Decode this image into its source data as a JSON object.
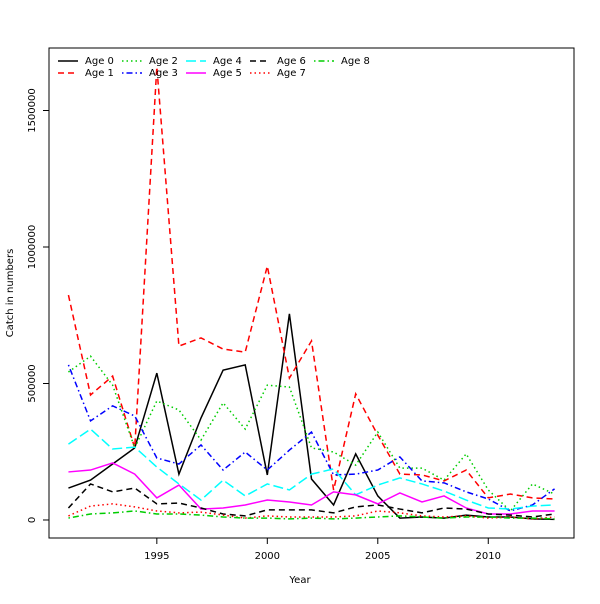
{
  "chart_data": {
    "type": "line",
    "x_label": "Year",
    "y_label": "Catch in numbers",
    "x": [
      1991,
      1992,
      1993,
      1994,
      1995,
      1996,
      1997,
      1998,
      1999,
      2000,
      2001,
      2002,
      2003,
      2004,
      2005,
      2006,
      2007,
      2008,
      2009,
      2010,
      2011,
      2012,
      2013
    ],
    "xlim": [
      1990.12,
      2013.88
    ],
    "xticks": [
      1995,
      2000,
      2005,
      2010
    ],
    "ylim": [
      -66000,
      1729000
    ],
    "yticks": [
      0,
      500000,
      1000000,
      1500000
    ],
    "legend": "top-left",
    "series": [
      {
        "name": "Age 0",
        "color": "#000000",
        "dash": "solid",
        "values": [
          117000,
          146000,
          205000,
          264000,
          538000,
          168000,
          374000,
          549000,
          568000,
          165000,
          755000,
          150000,
          55000,
          242000,
          88000,
          7000,
          11000,
          7000,
          18000,
          11000,
          11000,
          4000,
          2000
        ]
      },
      {
        "name": "Age 1",
        "color": "#ff0000",
        "dash": "dashed",
        "values": [
          824000,
          458000,
          527000,
          264000,
          1660000,
          637000,
          667000,
          626000,
          615000,
          930000,
          520000,
          656000,
          110000,
          462000,
          311000,
          168000,
          165000,
          143000,
          183000,
          81000,
          95000,
          81000,
          77000
        ]
      },
      {
        "name": "Age 2",
        "color": "#00cd00",
        "dash": "dotted",
        "values": [
          542000,
          600000,
          494000,
          264000,
          436000,
          403000,
          293000,
          429000,
          333000,
          494000,
          487000,
          264000,
          249000,
          201000,
          322000,
          190000,
          190000,
          146000,
          242000,
          110000,
          33000,
          132000,
          95000
        ]
      },
      {
        "name": "Age 3",
        "color": "#0000ff",
        "dash": "dotdash",
        "values": [
          568000,
          363000,
          418000,
          381000,
          227000,
          205000,
          275000,
          183000,
          249000,
          183000,
          256000,
          322000,
          165000,
          168000,
          183000,
          231000,
          143000,
          136000,
          103000,
          77000,
          33000,
          55000,
          114000
        ]
      },
      {
        "name": "Age 4",
        "color": "#00ffff",
        "dash": "longdash",
        "values": [
          278000,
          333000,
          260000,
          267000,
          194000,
          132000,
          73000,
          146000,
          88000,
          132000,
          110000,
          168000,
          187000,
          92000,
          128000,
          154000,
          132000,
          106000,
          73000,
          44000,
          40000,
          51000,
          55000
        ]
      },
      {
        "name": "Age 5",
        "color": "#ff00ff",
        "dash": "solid",
        "values": [
          176000,
          183000,
          209000,
          168000,
          81000,
          128000,
          40000,
          44000,
          55000,
          73000,
          66000,
          55000,
          103000,
          92000,
          59000,
          99000,
          66000,
          88000,
          44000,
          22000,
          22000,
          33000,
          33000
        ]
      },
      {
        "name": "Age 6",
        "color": "#000000",
        "dash": "dashed",
        "values": [
          44000,
          132000,
          103000,
          117000,
          59000,
          62000,
          44000,
          22000,
          15000,
          37000,
          37000,
          37000,
          26000,
          48000,
          55000,
          40000,
          26000,
          44000,
          40000,
          22000,
          18000,
          11000,
          22000
        ]
      },
      {
        "name": "Age 7",
        "color": "#ff0000",
        "dash": "dotted",
        "values": [
          15000,
          51000,
          59000,
          48000,
          33000,
          26000,
          29000,
          18000,
          7000,
          15000,
          11000,
          11000,
          11000,
          15000,
          33000,
          26000,
          15000,
          11000,
          15000,
          7000,
          11000,
          4000,
          11000
        ]
      },
      {
        "name": "Age 8",
        "color": "#00cd00",
        "dash": "dotdash",
        "values": [
          7000,
          22000,
          26000,
          33000,
          22000,
          22000,
          18000,
          11000,
          7000,
          7000,
          4000,
          7000,
          4000,
          7000,
          11000,
          15000,
          11000,
          7000,
          11000,
          11000,
          7000,
          7000,
          4000
        ]
      }
    ]
  }
}
